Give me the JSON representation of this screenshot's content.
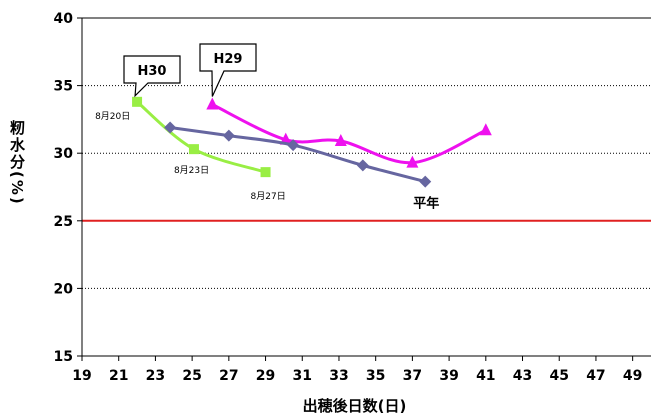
{
  "chart_data": {
    "type": "line",
    "xlabel": "出穂後日数(日)",
    "ylabel": "籾水分(%)",
    "xlim": [
      19,
      50
    ],
    "ylim": [
      15,
      40
    ],
    "xticks": [
      19,
      21,
      23,
      25,
      27,
      29,
      31,
      33,
      35,
      37,
      39,
      41,
      43,
      45,
      47,
      49
    ],
    "yticks": [
      15,
      20,
      25,
      30,
      35,
      40
    ],
    "grid": "horizontal dotted",
    "reference_line": {
      "y": 25,
      "color": "#e02020"
    },
    "series": [
      {
        "name": "H30",
        "color": "#99ee44",
        "marker": "square",
        "x": [
          22.0,
          25.1,
          29.0
        ],
        "y": [
          33.8,
          30.3,
          28.6
        ],
        "date_labels": [
          "8月20日",
          "8月23日",
          "8月27日"
        ]
      },
      {
        "name": "H29",
        "color": "#ee11ee",
        "marker": "triangle",
        "x": [
          26.1,
          30.1,
          33.1,
          37.0,
          41.0
        ],
        "y": [
          33.6,
          31.0,
          30.9,
          29.3,
          31.7
        ]
      },
      {
        "name": "平年",
        "color": "#6666a0",
        "marker": "diamond",
        "x": [
          23.8,
          27.0,
          30.5,
          34.3,
          37.7
        ],
        "y": [
          31.9,
          31.3,
          30.6,
          29.1,
          27.9
        ]
      }
    ]
  }
}
